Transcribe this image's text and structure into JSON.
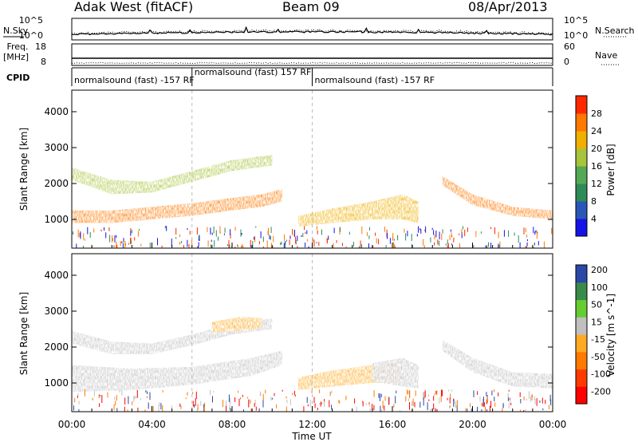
{
  "header": {
    "title": "Adak West (fitACF)",
    "beam": "Beam 09",
    "date": "08/Apr/2013"
  },
  "panels": {
    "nsky_label": "N.Sky",
    "nsearch_label": "N.Search",
    "nsky_ticks": [
      "10^5",
      "10^0"
    ],
    "freq_label": "Freq.",
    "freq_unit": "[MHz]",
    "freq_ticks": [
      "18",
      "8"
    ],
    "nave_label": "Nave",
    "nave_ticks": [
      "60",
      "0"
    ],
    "cpid_label": "CPID",
    "cpid_segments": [
      {
        "label": "normalsound (fast) -157 RF",
        "start": 0,
        "end": 6
      },
      {
        "label": "normalsound (fast) 157 RF",
        "start": 6,
        "end": 12
      },
      {
        "label": "normalsound (fast) -157 RF",
        "start": 12,
        "end": 24
      }
    ]
  },
  "colors": {
    "power": [
      "#1414e6",
      "#2a56b8",
      "#2e8b57",
      "#55a855",
      "#a8c43c",
      "#f0b000",
      "#ff7800",
      "#ff2800"
    ],
    "velocity": [
      "#ff0000",
      "#ff3a00",
      "#ff7a00",
      "#ffaa22",
      "#c0c0c0",
      "#66cc33",
      "#3a8a4a",
      "#2a48a8"
    ]
  },
  "chart_data": [
    {
      "type": "heatmap",
      "name": "Power",
      "xlabel": "",
      "ylabel": "Slant Range [km]",
      "x_range_hours": [
        0,
        24
      ],
      "ylim": [
        200,
        4600
      ],
      "y_ticks": [
        1000,
        2000,
        3000,
        4000
      ],
      "colorbar_label": "Power [dB]",
      "colorbar_ticks": [
        "4",
        "8",
        "12",
        "16",
        "20",
        "24",
        "28"
      ],
      "colorbar_range": [
        0,
        32
      ],
      "bands": [
        {
          "x": [
            0,
            2,
            4,
            6,
            8,
            9.5,
            10.5
          ],
          "y_lo": [
            900,
            900,
            1000,
            1100,
            1250,
            1350,
            1500
          ],
          "y_hi": [
            1250,
            1250,
            1350,
            1450,
            1600,
            1700,
            1850
          ],
          "power": 26
        },
        {
          "x": [
            0,
            2,
            4,
            6,
            8,
            10
          ],
          "y_lo": [
            2100,
            1700,
            1750,
            2050,
            2350,
            2500
          ],
          "y_hi": [
            2450,
            2100,
            2050,
            2350,
            2650,
            2800
          ],
          "power": 18
        },
        {
          "x": [
            11.3,
            13,
            15,
            16.5,
            17.3
          ],
          "y_lo": [
            800,
            900,
            1000,
            1000,
            900
          ],
          "y_hi": [
            1100,
            1300,
            1500,
            1700,
            1500
          ],
          "power": 20
        },
        {
          "x": [
            18.5,
            20,
            22,
            24
          ],
          "y_lo": [
            1950,
            1400,
            1100,
            1000
          ],
          "y_hi": [
            2200,
            1700,
            1350,
            1250
          ],
          "power": 24
        }
      ]
    },
    {
      "type": "heatmap",
      "name": "Velocity",
      "xlabel": "Time UT",
      "ylabel": "Slant Range [km]",
      "x_range_hours": [
        0,
        24
      ],
      "x_ticks": [
        "00:00",
        "04:00",
        "08:00",
        "12:00",
        "16:00",
        "20:00",
        "00:00"
      ],
      "ylim": [
        200,
        4600
      ],
      "y_ticks": [
        1000,
        2000,
        3000,
        4000
      ],
      "colorbar_label": "Velocity [m s^-1]",
      "colorbar_ticks": [
        "200",
        "100",
        "50",
        "15",
        "-15",
        "-50",
        "-100",
        "-200"
      ],
      "bands": [
        {
          "x": [
            0,
            3,
            6,
            9,
            10.5
          ],
          "y_lo": [
            750,
            800,
            950,
            1200,
            1500
          ],
          "y_hi": [
            1500,
            1400,
            1450,
            1700,
            1900
          ],
          "velocity": 0
        },
        {
          "x": [
            0,
            2,
            4,
            6,
            8,
            10
          ],
          "y_lo": [
            2100,
            1800,
            1800,
            2050,
            2350,
            2500
          ],
          "y_hi": [
            2450,
            2150,
            2100,
            2350,
            2650,
            2800
          ],
          "velocity": 0
        },
        {
          "x": [
            7,
            8.5,
            9.5
          ],
          "y_lo": [
            2400,
            2450,
            2550
          ],
          "y_hi": [
            2700,
            2850,
            2800
          ],
          "velocity": -30
        },
        {
          "x": [
            11.3,
            13,
            15,
            16.5
          ],
          "y_lo": [
            800,
            900,
            1000,
            1000
          ],
          "y_hi": [
            1150,
            1350,
            1500,
            1600
          ],
          "velocity": -30
        },
        {
          "x": [
            15,
            16.5,
            17.3
          ],
          "y_lo": [
            1050,
            900,
            850
          ],
          "y_hi": [
            1550,
            1700,
            1500
          ],
          "velocity": 0
        },
        {
          "x": [
            18.5,
            20,
            22,
            24
          ],
          "y_lo": [
            1900,
            1300,
            900,
            850
          ],
          "y_hi": [
            2200,
            1700,
            1300,
            1250
          ],
          "velocity": 0
        }
      ]
    }
  ]
}
